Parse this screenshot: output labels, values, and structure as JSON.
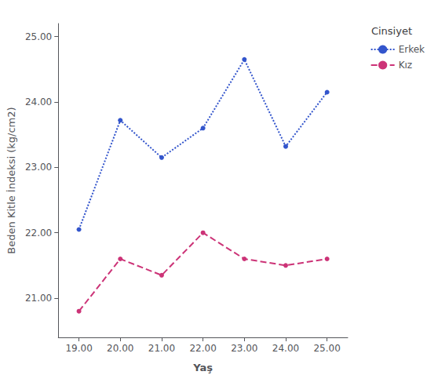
{
  "chart_data": {
    "type": "line",
    "x": [
      19,
      20,
      21,
      22,
      23,
      24,
      25
    ],
    "series": [
      {
        "name": "Erkek",
        "color": "#3355CC",
        "marker": "circle",
        "line_style": "dotted",
        "values": [
          22.05,
          23.72,
          23.15,
          23.6,
          24.65,
          23.32,
          24.15
        ]
      },
      {
        "name": "Kız",
        "color": "#CC3377",
        "marker": "circle",
        "line_style": "dashed",
        "values": [
          20.8,
          21.6,
          21.35,
          22.0,
          21.6,
          21.5,
          21.6
        ]
      }
    ],
    "xlabel": "Yaş",
    "ylabel": "Beden Kitle İndeksi (kg/cm2)",
    "legend_title": "Cinsiyet",
    "legend": "right",
    "xlim": [
      18.5,
      25.5
    ],
    "ylim": [
      20.4,
      25.2
    ],
    "xticks": [
      {
        "value": 19,
        "label": "19.00"
      },
      {
        "value": 20,
        "label": "20.00"
      },
      {
        "value": 21,
        "label": "21.00"
      },
      {
        "value": 22,
        "label": "22.00"
      },
      {
        "value": 23,
        "label": "23.00"
      },
      {
        "value": 24,
        "label": "24.00"
      },
      {
        "value": 25,
        "label": "25.00"
      }
    ],
    "yticks": [
      {
        "value": 21,
        "label": "21.00"
      },
      {
        "value": 22,
        "label": "22.00"
      },
      {
        "value": 23,
        "label": "23.00"
      },
      {
        "value": 24,
        "label": "24.00"
      },
      {
        "value": 25,
        "label": "25.00"
      }
    ],
    "grid": false
  }
}
